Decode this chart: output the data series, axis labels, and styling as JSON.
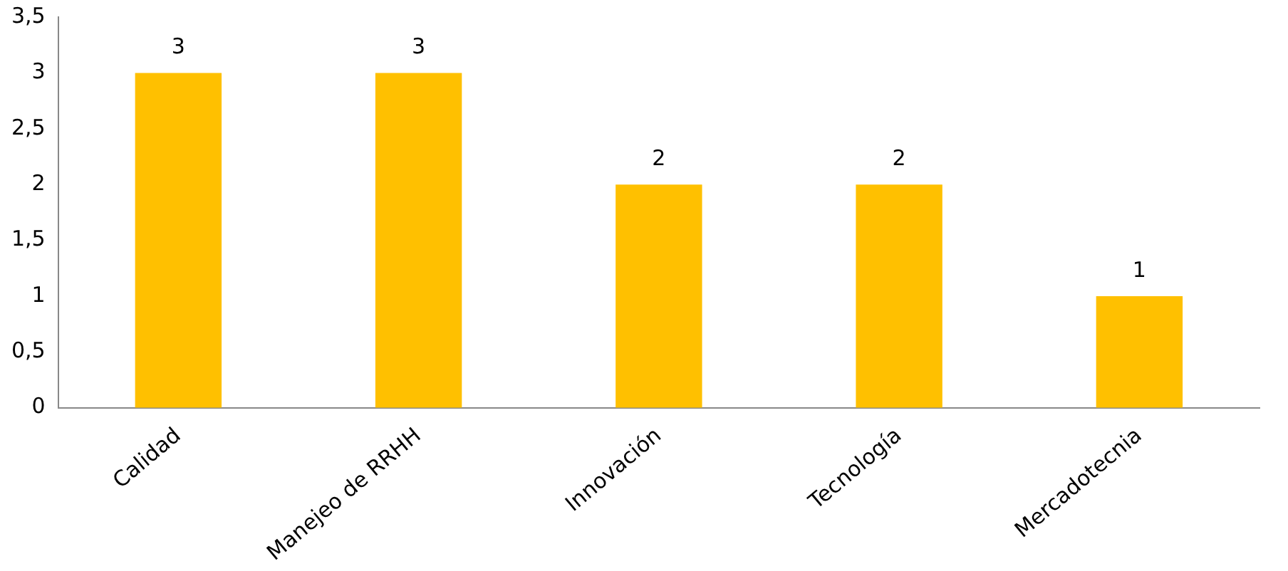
{
  "chart_data": {
    "type": "bar",
    "categories": [
      "Calidad",
      "Manejeo de RRHH",
      "Innovación",
      "Tecnología",
      "Mercadotecnia"
    ],
    "values": [
      3,
      3,
      2,
      2,
      1
    ],
    "color": "#ffc000",
    "ylim": [
      0,
      3.5
    ],
    "yticks": [
      0,
      {
        "value": 0.5,
        "label": "0,5"
      },
      1,
      {
        "value": 1.5,
        "label": "1,5"
      },
      2,
      {
        "value": 2.5,
        "label": "2,5"
      },
      3,
      {
        "value": 3.5,
        "label": "3,5"
      }
    ],
    "grid": false,
    "data_labels": true
  }
}
